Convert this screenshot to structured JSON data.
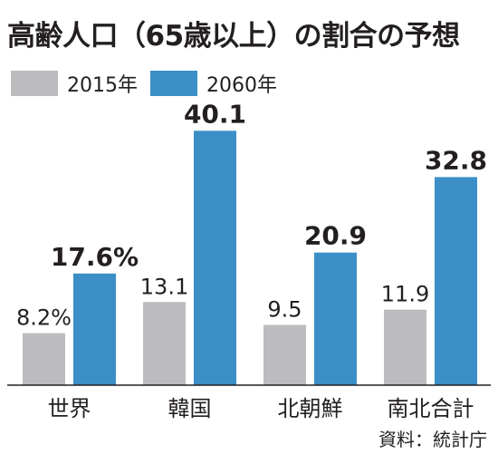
{
  "title": "高齢人口（65歳以上）の割合の予想",
  "source": "資料：統計庁",
  "colors": {
    "series_2015": "#bcbcbe",
    "series_2060": "#3b8fc6",
    "axis": "#231f20",
    "text": "#231f20"
  },
  "chart_data": {
    "type": "bar",
    "title": "高齢人口（65歳以上）の割合の予想",
    "xlabel": "",
    "ylabel": "",
    "unit": "%",
    "categories": [
      "世界",
      "韓国",
      "北朝鮮",
      "南北合計"
    ],
    "series": [
      {
        "name": "2015年",
        "values": [
          8.2,
          13.1,
          9.5,
          11.9
        ],
        "labels": [
          "8.2%",
          "13.1",
          "9.5",
          "11.9"
        ]
      },
      {
        "name": "2060年",
        "values": [
          17.6,
          40.1,
          20.9,
          32.8
        ],
        "labels": [
          "17.6%",
          "40.1",
          "20.9",
          "32.8"
        ]
      }
    ],
    "ylim": [
      0,
      50
    ],
    "grid": false,
    "legend_position": "top-left"
  }
}
